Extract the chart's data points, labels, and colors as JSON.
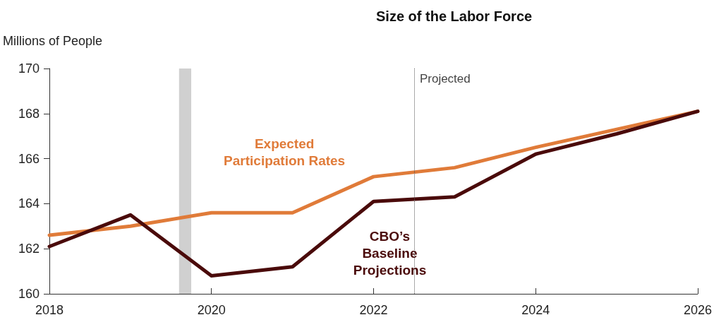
{
  "chart_data": {
    "type": "line",
    "title": "Size of the Labor Force",
    "ylabel": "Millions of People",
    "x": [
      2018,
      2019,
      2020,
      2021,
      2022,
      2023,
      2024,
      2025,
      2026
    ],
    "series": [
      {
        "name": "Expected Participation Rates",
        "color": "#e07b39",
        "values": [
          162.6,
          163.0,
          163.6,
          163.6,
          165.2,
          165.6,
          166.5,
          167.3,
          168.1
        ]
      },
      {
        "name": "CBO’s Baseline Projections",
        "color": "#4a0a0a",
        "values": [
          162.1,
          163.5,
          160.8,
          161.2,
          164.1,
          164.3,
          166.2,
          167.1,
          168.1
        ]
      }
    ],
    "xlim": [
      2018,
      2026
    ],
    "xticks": [
      2018,
      2020,
      2022,
      2024,
      2026
    ],
    "ylim": [
      160,
      170
    ],
    "yticks": [
      160,
      162,
      164,
      166,
      168,
      170
    ],
    "grid": false,
    "legend": false,
    "marker": "none",
    "line_style": "solid",
    "ref_lines": [
      {
        "axis": "x",
        "value": 2022.5,
        "label": "Projected",
        "color": "#555555",
        "line_style": "dotted"
      }
    ],
    "bands": [
      {
        "axis": "x",
        "from": 2019.6,
        "to": 2019.75,
        "color": "#d0d0d0"
      }
    ]
  }
}
